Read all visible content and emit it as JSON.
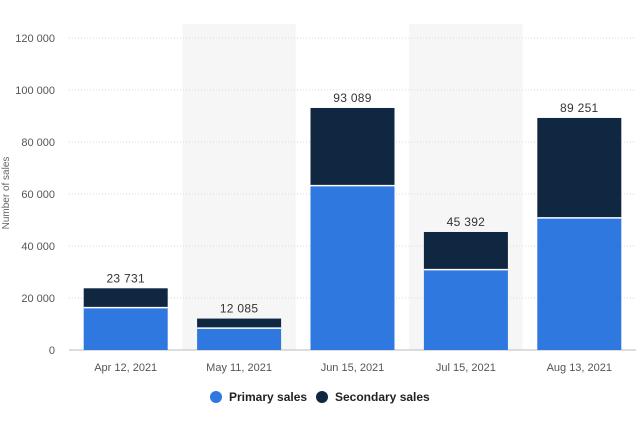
{
  "chart_data": {
    "type": "bar",
    "stacked": true,
    "categories": [
      "Apr 12, 2021",
      "May 11, 2021",
      "Jun 15, 2021",
      "Jul 15, 2021",
      "Aug 13, 2021"
    ],
    "series": [
      {
        "name": "Primary sales",
        "color": "#2f78e0",
        "values": [
          16300,
          8400,
          63200,
          30900,
          50800
        ]
      },
      {
        "name": "Secondary sales",
        "color": "#0f2740",
        "values": [
          7431,
          3685,
          29889,
          14492,
          38451
        ]
      }
    ],
    "totals": [
      23731,
      12085,
      93089,
      45392,
      89251
    ],
    "total_labels": [
      "23 731",
      "12 085",
      "93 089",
      "45 392",
      "89 251"
    ],
    "ylabel": "Number of sales",
    "xlabel": "",
    "ylim": [
      0,
      120000
    ],
    "y_ticks": [
      0,
      20000,
      40000,
      60000,
      80000,
      100000,
      120000
    ],
    "y_tick_labels": [
      "0",
      "20 000",
      "40 000",
      "60 000",
      "80 000",
      "100 000",
      "120 000"
    ],
    "shaded_categories": [
      1,
      3
    ],
    "grid": true,
    "legend_position": "bottom"
  }
}
